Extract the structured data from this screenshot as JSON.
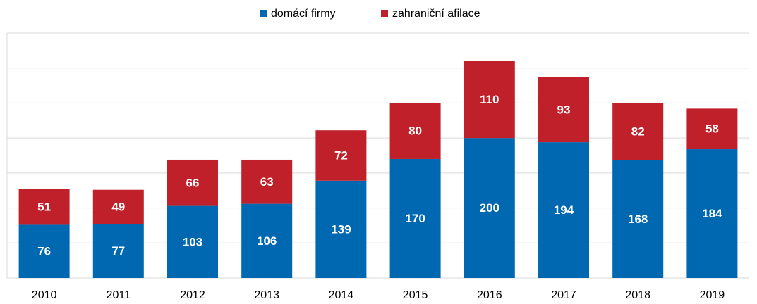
{
  "chart_data": {
    "type": "stacked_bar",
    "categories": [
      "2010",
      "2011",
      "2012",
      "2013",
      "2014",
      "2015",
      "2016",
      "2017",
      "2018",
      "2019"
    ],
    "series": [
      {
        "name": "domácí firmy",
        "color": "#0068b0",
        "values": [
          76,
          77,
          103,
          106,
          139,
          170,
          200,
          194,
          168,
          184
        ]
      },
      {
        "name": "zahraniční afilace",
        "color": "#c0202a",
        "values": [
          51,
          49,
          66,
          63,
          72,
          80,
          110,
          93,
          82,
          58
        ]
      }
    ],
    "ylim": [
      0,
      350
    ],
    "yticks": [
      0,
      50,
      100,
      150,
      200,
      250,
      300,
      350
    ],
    "grid": true,
    "legend": "top"
  }
}
